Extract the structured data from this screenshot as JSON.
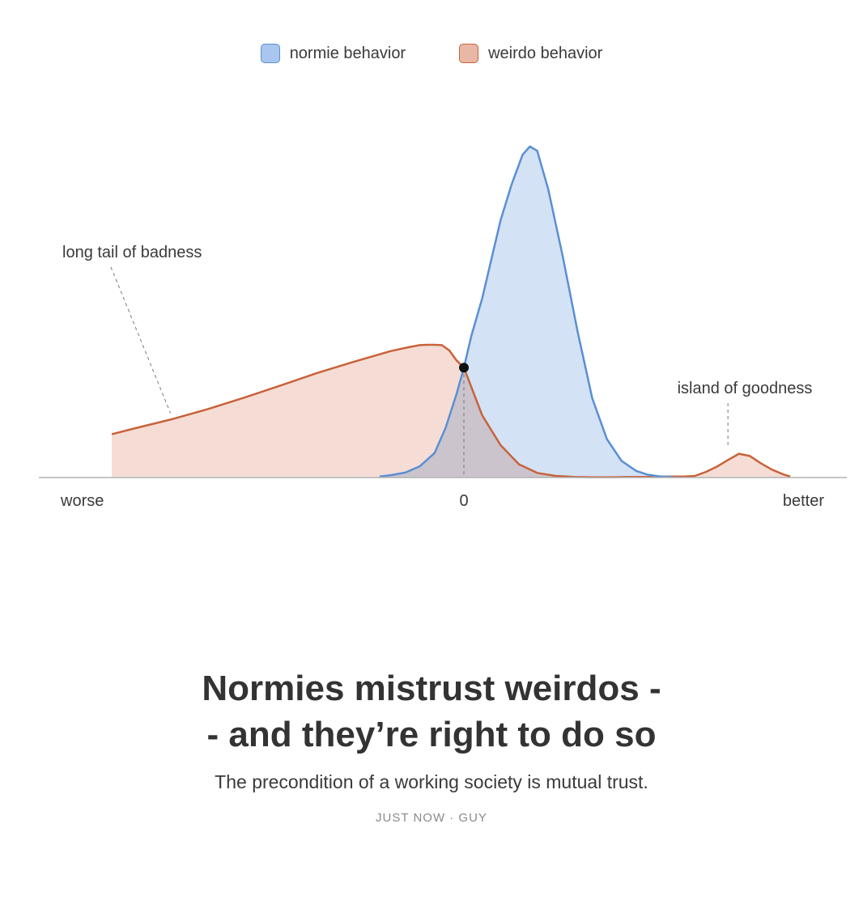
{
  "chart_data": {
    "type": "area",
    "xlim": [
      -10,
      9
    ],
    "ylim": [
      0,
      1
    ],
    "axis": {
      "show_y_axis": false,
      "grid": false,
      "baseline": true
    },
    "x_ticks": [
      {
        "x": -9.5,
        "label": "worse"
      },
      {
        "x": 0,
        "label": "0"
      },
      {
        "x": 8.4,
        "label": "better"
      }
    ],
    "legend": {
      "placement": "top-center"
    },
    "series": [
      {
        "name": "weirdo behavior",
        "color": "#c8623a",
        "fill": "#f5ddd5",
        "swatch_fill": "#e9b7a6",
        "x": [
          -9.6,
          -9,
          -8,
          -7,
          -6,
          -5,
          -4,
          -3,
          -2,
          -1.5,
          -1.2,
          -1,
          -0.8,
          -0.6,
          -0.4,
          -0.2,
          0,
          0.2,
          0.5,
          1,
          1.5,
          2,
          2.5,
          3,
          3.5,
          4,
          4.5,
          5,
          5.5,
          6,
          6.3,
          6.6,
          6.9,
          7.2,
          7.5,
          7.8,
          8.1,
          8.4,
          8.7,
          8.9
        ],
        "values": [
          0.131,
          0.148,
          0.175,
          0.206,
          0.241,
          0.278,
          0.316,
          0.35,
          0.382,
          0.394,
          0.4,
          0.401,
          0.401,
          0.4,
          0.384,
          0.354,
          0.332,
          0.274,
          0.188,
          0.098,
          0.04,
          0.014,
          0.005,
          0.002,
          0.001,
          0.001,
          0.002,
          0.002,
          0.003,
          0.003,
          0.005,
          0.017,
          0.033,
          0.053,
          0.072,
          0.065,
          0.043,
          0.024,
          0.01,
          0.003
        ]
      },
      {
        "name": "normie behavior",
        "color": "#5a8fd4",
        "fill": "#d4e2f5",
        "swatch_fill": "#a9c6ee",
        "x": [
          -2.3,
          -2,
          -1.6,
          -1.2,
          -0.8,
          -0.5,
          -0.2,
          0,
          0.2,
          0.5,
          1,
          1.3,
          1.6,
          1.8,
          2,
          2.3,
          2.7,
          3.1,
          3.5,
          3.9,
          4.3,
          4.7,
          5,
          5.3,
          5.7
        ],
        "values": [
          0.003,
          0.007,
          0.015,
          0.034,
          0.074,
          0.15,
          0.252,
          0.332,
          0.427,
          0.541,
          0.777,
          0.885,
          0.975,
          1.0,
          0.987,
          0.871,
          0.666,
          0.442,
          0.24,
          0.116,
          0.05,
          0.02,
          0.009,
          0.004,
          0.001
        ]
      }
    ],
    "intersection_point": {
      "x": 0,
      "y": 0.332
    },
    "annotations": [
      {
        "text": "long tail of badness",
        "x": -8,
        "y": 0.175,
        "label_anchor": "left"
      },
      {
        "text": "island of goodness",
        "x": 7.2,
        "y": 0.072,
        "label_anchor": "center"
      }
    ]
  },
  "article": {
    "headline_line1": "Normies mistrust weirdos -",
    "headline_line2": "- and they’re right to do so",
    "subtitle": "The precondition of a working society is mutual trust.",
    "byline": "JUST NOW · GUY"
  }
}
